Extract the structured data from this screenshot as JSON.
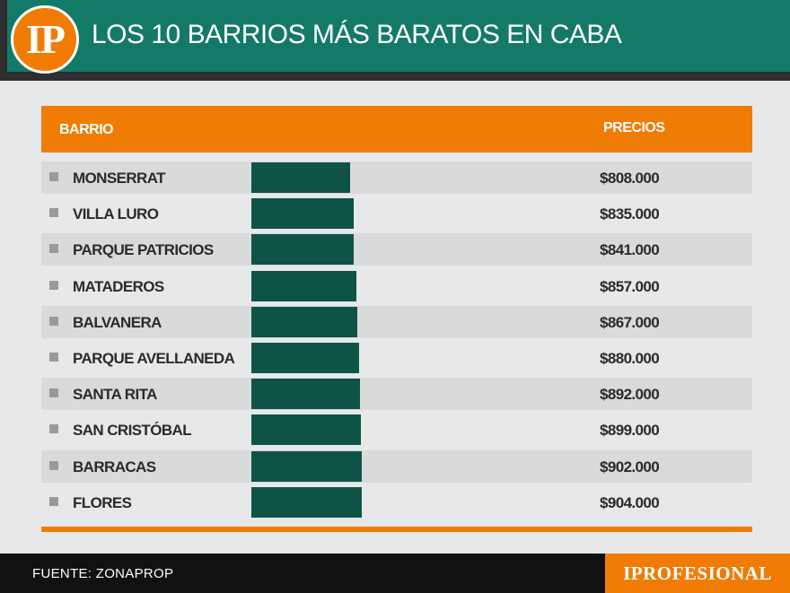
{
  "logo": {
    "text": "IP"
  },
  "title": "LOS 10 BARRIOS MÁS BARATOS EN CABA",
  "table": {
    "col_barrio": "BARRIO",
    "col_precios": "PRECIOS"
  },
  "chart_data": {
    "type": "bar",
    "orientation": "horizontal",
    "categories": [
      "MONSERRAT",
      "VILLA LURO",
      "PARQUE PATRICIOS",
      "MATADEROS",
      "BALVANERA",
      "PARQUE AVELLANEDA",
      "SANTA RITA",
      "SAN CRISTÓBAL",
      "BARRACAS",
      "FLORES"
    ],
    "values": [
      808000,
      835000,
      841000,
      857000,
      867000,
      880000,
      892000,
      899000,
      902000,
      904000
    ],
    "labels": [
      "$808.000",
      "$835.000",
      "$841.000",
      "$857.000",
      "$867.000",
      "$880.000",
      "$892.000",
      "$899.000",
      "$902.000",
      "$904.000"
    ],
    "title": "LOS 10 BARRIOS MÁS BARATOS EN CABA",
    "xlabel": "PRECIOS",
    "ylabel": "BARRIO",
    "colors": {
      "bar": "#0e5446",
      "header": "#f07c05",
      "stripe": "#d9dadc"
    }
  },
  "footer": {
    "source": "FUENTE: ZONAPROP",
    "brand": "IPROFESIONAL"
  },
  "colors": {
    "header_bg": "#147a68",
    "accent": "#f07c05",
    "footer_bg": "#111111"
  }
}
